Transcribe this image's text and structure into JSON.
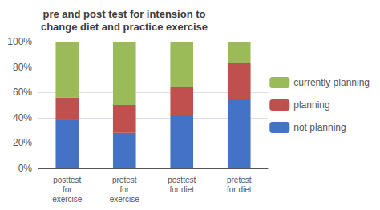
{
  "chart_data": {
    "type": "bar",
    "title": "pre and post test for intension to\nchange diet and practice exercise",
    "categories": [
      "posttest\nfor\nexercise",
      "pretest\nfor\nexercise",
      "posttest\nfor diet",
      "pretest\nfor diet"
    ],
    "series": [
      {
        "name": "not planning",
        "color": "#4472C4",
        "values": [
          38,
          28,
          42,
          55
        ]
      },
      {
        "name": "planning",
        "color": "#C0504D",
        "values": [
          18,
          22,
          22,
          28
        ]
      },
      {
        "name": "currently planning",
        "color": "#9BBB59",
        "values": [
          44,
          50,
          36,
          17
        ]
      }
    ],
    "stacked": true,
    "ylim": [
      0,
      100
    ],
    "yticks": [
      {
        "value": 0,
        "label": "0%"
      },
      {
        "value": 20,
        "label": "20%"
      },
      {
        "value": 40,
        "label": "40%"
      },
      {
        "value": 60,
        "label": "60%"
      },
      {
        "value": 80,
        "label": "80%"
      },
      {
        "value": 100,
        "label": "100%"
      }
    ],
    "grid": true,
    "legend": "right"
  }
}
